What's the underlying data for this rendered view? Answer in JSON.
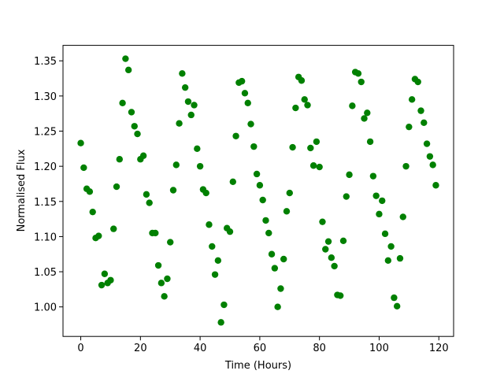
{
  "chart_data": {
    "type": "scatter",
    "xlabel": "Time (Hours)",
    "ylabel": "Normalised Flux",
    "color": "#008000",
    "x": [
      0,
      1,
      2,
      3,
      4,
      5,
      6,
      7,
      8,
      9,
      10,
      11,
      12,
      13,
      14,
      15,
      16,
      17,
      18,
      19,
      20,
      21,
      22,
      23,
      24,
      25,
      26,
      27,
      28,
      29,
      30,
      31,
      32,
      33,
      34,
      35,
      36,
      37,
      38,
      39,
      40,
      41,
      42,
      43,
      44,
      45,
      46,
      47,
      48,
      49,
      50,
      51,
      52,
      53,
      54,
      55,
      56,
      57,
      58,
      59,
      60,
      61,
      62,
      63,
      64,
      65,
      66,
      67,
      68,
      69,
      70,
      71,
      72,
      73,
      74,
      75,
      76,
      77,
      78,
      79,
      80,
      81,
      82,
      83,
      84,
      85,
      86,
      87,
      88,
      89,
      90,
      91,
      92,
      93,
      94,
      95,
      96,
      97,
      98,
      99,
      100,
      101,
      102,
      103,
      104,
      105,
      106,
      107,
      108,
      109,
      110,
      111,
      112,
      113,
      114,
      115,
      116,
      117,
      118,
      119
    ],
    "values": [
      1.233,
      1.198,
      1.168,
      1.164,
      1.135,
      1.098,
      1.101,
      1.031,
      1.047,
      1.034,
      1.038,
      1.111,
      1.171,
      1.21,
      1.29,
      1.353,
      1.337,
      1.277,
      1.257,
      1.246,
      1.21,
      1.215,
      1.16,
      1.148,
      1.105,
      1.105,
      1.059,
      1.034,
      1.015,
      1.04,
      1.092,
      1.166,
      1.202,
      1.261,
      1.332,
      1.312,
      1.292,
      1.273,
      1.287,
      1.225,
      1.2,
      1.167,
      1.162,
      1.117,
      1.086,
      1.046,
      1.066,
      0.978,
      1.003,
      1.112,
      1.107,
      1.178,
      1.243,
      1.319,
      1.321,
      1.304,
      1.29,
      1.26,
      1.228,
      1.189,
      1.173,
      1.152,
      1.123,
      1.105,
      1.075,
      1.055,
      1.0,
      1.026,
      1.068,
      1.136,
      1.162,
      1.227,
      1.283,
      1.327,
      1.322,
      1.295,
      1.287,
      1.226,
      1.201,
      1.235,
      1.199,
      1.121,
      1.082,
      1.093,
      1.07,
      1.058,
      1.017,
      1.016,
      1.094,
      1.157,
      1.188,
      1.286,
      1.334,
      1.332,
      1.32,
      1.268,
      1.276,
      1.235,
      1.186,
      1.158,
      1.132,
      1.151,
      1.104,
      1.066,
      1.086,
      1.013,
      1.001,
      1.069,
      1.128,
      1.2,
      1.256,
      1.295,
      1.324,
      1.32,
      1.279,
      1.262,
      1.232,
      1.214,
      1.202,
      1.173
    ],
    "xlim": [
      -5.95,
      124.95
    ],
    "xticks": [
      0,
      20,
      40,
      60,
      80,
      100,
      120
    ],
    "ylim": [
      0.958,
      1.372
    ],
    "yticks": [
      {
        "value": 1.0,
        "label": "1.00"
      },
      {
        "value": 1.05,
        "label": "1.05"
      },
      {
        "value": 1.1,
        "label": "1.10"
      },
      {
        "value": 1.15,
        "label": "1.15"
      },
      {
        "value": 1.2,
        "label": "1.20"
      },
      {
        "value": 1.25,
        "label": "1.25"
      },
      {
        "value": 1.3,
        "label": "1.30"
      },
      {
        "value": 1.35,
        "label": "1.35"
      }
    ]
  }
}
